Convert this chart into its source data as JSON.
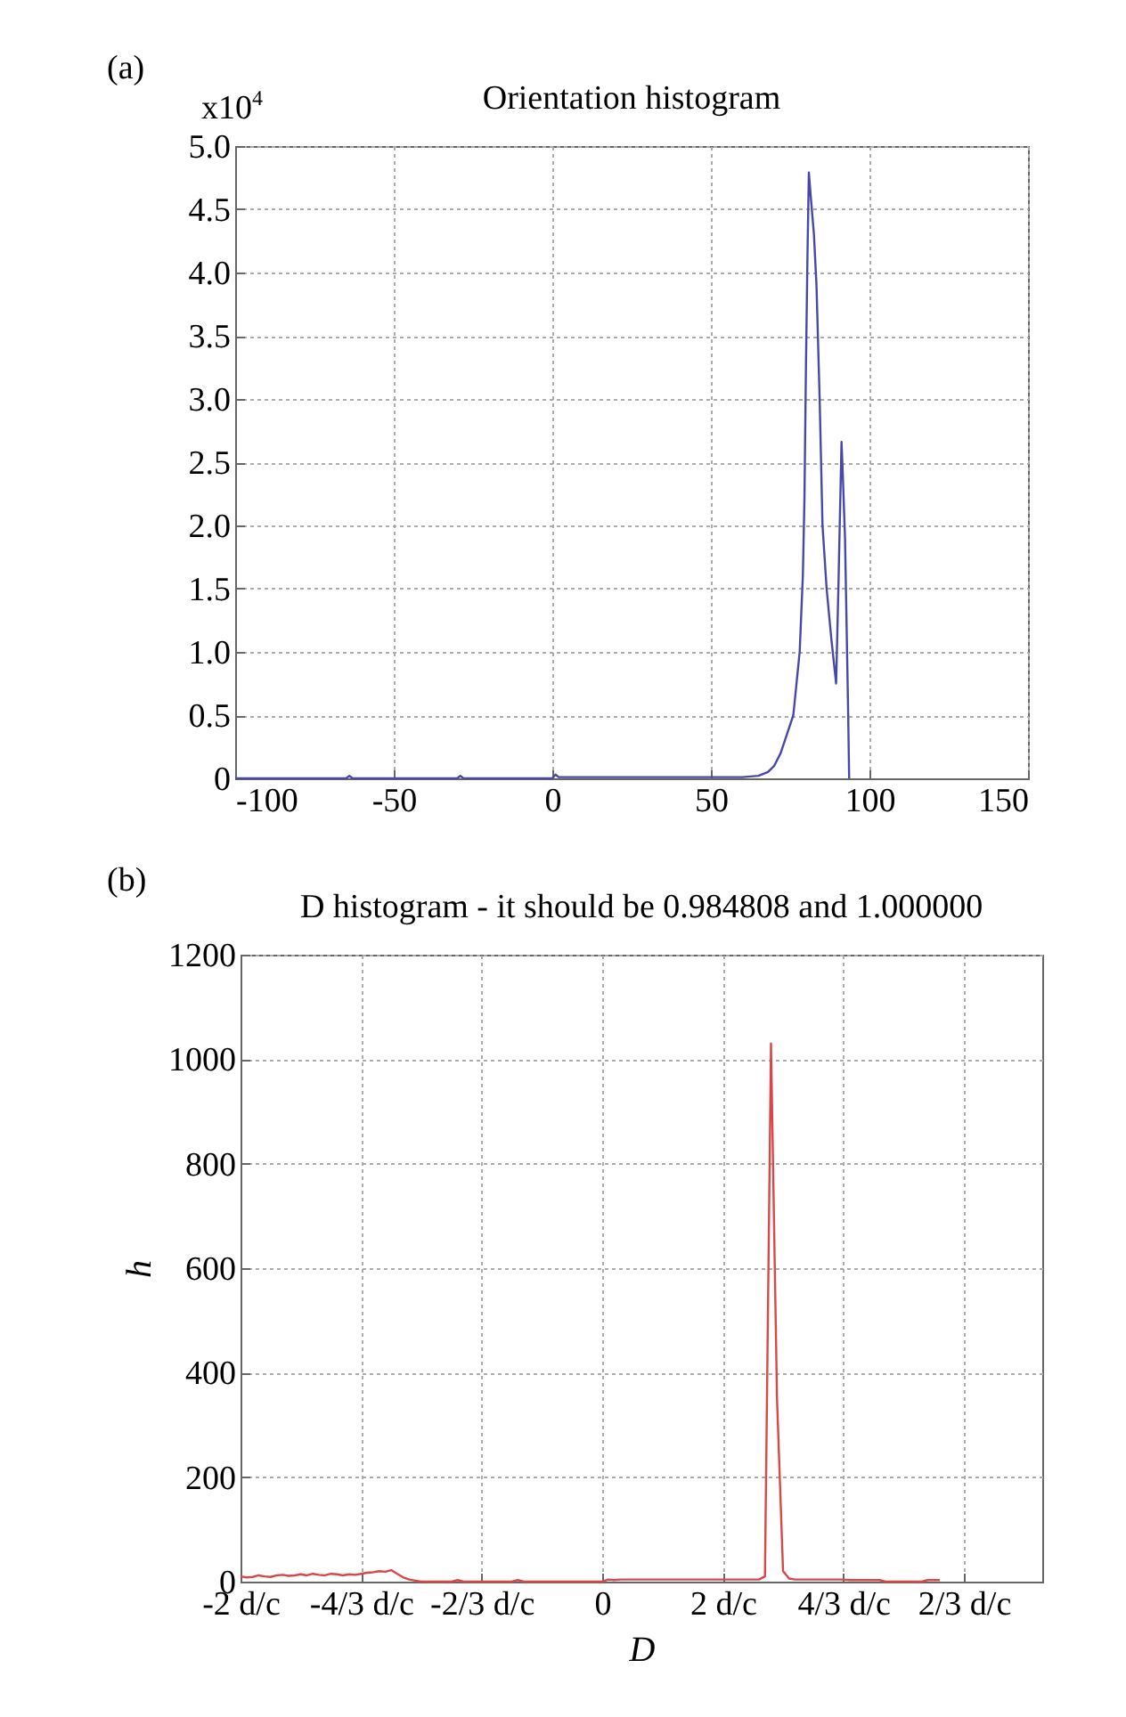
{
  "chart_data": [
    {
      "type": "line",
      "title": "Orientation histogram",
      "annotations": [
        "(a)",
        "x10$^{4}$"
      ],
      "x": [
        -100,
        -65,
        -64,
        -63,
        -30,
        -29,
        -28,
        0,
        1,
        2,
        10,
        20,
        30,
        40,
        50,
        60,
        65,
        68,
        70,
        72,
        74,
        76,
        77,
        78,
        79,
        79.5,
        80,
        80.5,
        80.9,
        81.5,
        82.5,
        83.3,
        84.3,
        85.2,
        86.5,
        88,
        89.5,
        90.2,
        91.2,
        91.6,
        92.3,
        93.3,
        93.6
      ],
      "series": [
        {
          "color": "#4848a8",
          "values": [
            0,
            0,
            0.02,
            0,
            0,
            0.02,
            0,
            0,
            0.03,
            0.01,
            0.01,
            0.01,
            0.01,
            0.01,
            0.01,
            0.01,
            0.02,
            0.05,
            0.1,
            0.2,
            0.35,
            0.5,
            0.75,
            1.0,
            1.6,
            2.2,
            3.3,
            4.2,
            4.79,
            4.6,
            4.3,
            3.9,
            3.0,
            2.0,
            1.5,
            1.1,
            0.75,
            1.5,
            2.66,
            2.4,
            1.9,
            0.5,
            0
          ]
        }
      ],
      "xlim": [
        -100,
        150
      ],
      "xticks": [
        -100,
        -50,
        0,
        50,
        100,
        150
      ],
      "ylim": [
        0,
        5
      ],
      "yticks": [
        0,
        0.5,
        {
          "value": 1,
          "label": "1.0"
        },
        1.5,
        {
          "value": 2,
          "label": "2.0"
        },
        2.5,
        {
          "value": 3,
          "label": "3.0"
        },
        3.5,
        {
          "value": 4,
          "label": "4.0"
        },
        4.5,
        {
          "value": 5,
          "label": "5.0"
        }
      ],
      "grid": true
    },
    {
      "type": "line",
      "title": "D histogram - it should be 0.984808 and 1.000000",
      "xlabel": "D",
      "ylabel": "h",
      "annotations": [
        "(b)"
      ],
      "categories": [
        "-2 d/c",
        null,
        null,
        null,
        null,
        null,
        null,
        null,
        null,
        null,
        null,
        null,
        null,
        null,
        null,
        null,
        null,
        null,
        null,
        null,
        "-4/3 d/c",
        null,
        null,
        null,
        null,
        null,
        null,
        null,
        null,
        null,
        null,
        null,
        null,
        null,
        null,
        null,
        null,
        null,
        null,
        null,
        "-2/3 d/c",
        null,
        null,
        null,
        null,
        null,
        null,
        null,
        null,
        null,
        null,
        null,
        null,
        null,
        null,
        null,
        null,
        null,
        null,
        null,
        "0",
        null,
        null,
        null,
        null,
        null,
        null,
        null,
        null,
        null,
        null,
        null,
        null,
        null,
        null,
        null,
        null,
        null,
        null,
        null,
        "2 d/c",
        null,
        null,
        null,
        null,
        null,
        null,
        null,
        null,
        null,
        null,
        null,
        null,
        null,
        null,
        null,
        null,
        null,
        null,
        null,
        "4/3 d/c",
        null,
        null,
        null,
        null,
        null,
        null,
        null,
        null,
        null,
        null,
        null,
        null,
        null,
        null,
        null,
        null,
        null,
        null,
        null,
        "2/3 d/c",
        null,
        null,
        null,
        null,
        null,
        null,
        null,
        null,
        null,
        null,
        null,
        null,
        null
      ],
      "series": [
        {
          "color": "#d84848",
          "values": [
            10,
            8,
            9,
            12,
            10,
            9,
            12,
            13,
            11,
            12,
            14,
            12,
            15,
            13,
            12,
            15,
            14,
            12,
            14,
            13,
            15,
            17,
            18,
            20,
            19,
            22,
            15,
            8,
            4,
            2,
            0,
            0,
            0,
            0,
            0,
            0,
            3,
            0,
            0,
            0,
            0,
            0,
            0,
            0,
            0,
            0,
            3,
            0,
            0,
            0,
            0,
            0,
            0,
            0,
            0,
            0,
            0,
            0,
            0,
            0,
            0,
            4,
            3,
            4,
            4,
            4,
            4,
            4,
            4,
            4,
            4,
            4,
            4,
            4,
            4,
            4,
            4,
            4,
            4,
            4,
            4,
            4,
            4,
            4,
            4,
            4,
            4,
            10,
            1030,
            350,
            20,
            6,
            4,
            4,
            4,
            4,
            4,
            4,
            4,
            4,
            4,
            3,
            3,
            3,
            3,
            3,
            3,
            0,
            0,
            0,
            0,
            0,
            0,
            0,
            3,
            3,
            3,
            null,
            null,
            null,
            null,
            null,
            null,
            null,
            null,
            null,
            null,
            null,
            null,
            null,
            null,
            null,
            null,
            null
          ]
        }
      ],
      "ylim": [
        0,
        1200
      ],
      "yticks": [
        0,
        200,
        400,
        600,
        800,
        1000,
        1200
      ],
      "grid": true
    }
  ]
}
